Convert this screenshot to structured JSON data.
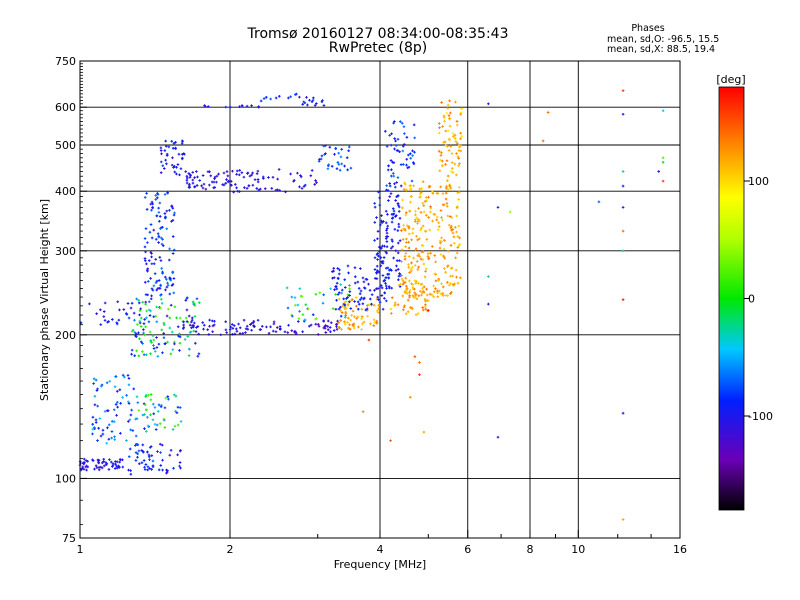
{
  "chart_data": {
    "type": "scatter",
    "title": "Tromsø 20160127 08:34:00-08:35:43",
    "subtitle": "RwPretec (8p)",
    "xlabel": "Frequency [MHz]",
    "ylabel": "Stationary phase Virtual Height [km]",
    "x_scale": "log",
    "y_scale": "log",
    "xlim": [
      1,
      16
    ],
    "ylim": [
      75,
      750
    ],
    "x_ticks": [
      1,
      2,
      4,
      6,
      8,
      10,
      16
    ],
    "x_tick_labels": [
      "1",
      "2",
      "4",
      "6",
      "8",
      "10",
      "16"
    ],
    "y_ticks": [
      75,
      100,
      200,
      300,
      400,
      500,
      600,
      750
    ],
    "y_tick_labels": [
      "75",
      "100",
      "200",
      "300",
      "400",
      "500",
      "600",
      "750"
    ],
    "x_minor": [
      3,
      5,
      7,
      9,
      12,
      14
    ],
    "grid": true,
    "info": {
      "heading": "Phases",
      "o_line": "mean, sd,O: -96.5, 15.5",
      "x_line": "mean, sd,X: 88.5, 19.4"
    },
    "colorbar": {
      "label": "[deg]",
      "range": [
        -180,
        180
      ],
      "ticks": [
        100,
        0,
        -100
      ],
      "tick_labels": [
        "100",
        "0",
        "-100"
      ]
    },
    "point_groups": [
      {
        "x": [
          1.0,
          1.22
        ],
        "y": [
          104,
          110
        ],
        "phase": [
          -115,
          -90
        ],
        "n": 60
      },
      {
        "x": [
          1.05,
          1.3
        ],
        "y": [
          118,
          165
        ],
        "phase": [
          -110,
          -40
        ],
        "n": 70
      },
      {
        "x": [
          1.25,
          1.6
        ],
        "y": [
          102,
          118
        ],
        "phase": [
          -115,
          -70
        ],
        "n": 60
      },
      {
        "x": [
          1.3,
          1.6
        ],
        "y": [
          125,
          150
        ],
        "phase": [
          -100,
          40
        ],
        "n": 50
      },
      {
        "x": [
          1.0,
          1.45
        ],
        "y": [
          210,
          235
        ],
        "phase": [
          -115,
          -80
        ],
        "n": 30
      },
      {
        "x": [
          1.25,
          1.75
        ],
        "y": [
          180,
          240
        ],
        "phase": [
          -120,
          30
        ],
        "n": 120
      },
      {
        "x": [
          1.35,
          1.55
        ],
        "y": [
          240,
          400
        ],
        "phase": [
          -115,
          -60
        ],
        "n": 120
      },
      {
        "x": [
          1.45,
          1.62
        ],
        "y": [
          430,
          510
        ],
        "phase": [
          -115,
          -80
        ],
        "n": 40
      },
      {
        "x": [
          1.62,
          2.0
        ],
        "y": [
          403,
          440
        ],
        "phase": [
          -120,
          -90
        ],
        "n": 50
      },
      {
        "x": [
          2.0,
          3.0
        ],
        "y": [
          398,
          445
        ],
        "phase": [
          -120,
          -90
        ],
        "n": 60
      },
      {
        "x": [
          3.0,
          3.5
        ],
        "y": [
          440,
          500
        ],
        "phase": [
          -100,
          -60
        ],
        "n": 30
      },
      {
        "x": [
          1.75,
          2.3
        ],
        "y": [
          600,
          605
        ],
        "phase": [
          -110,
          -90
        ],
        "n": 12
      },
      {
        "x": [
          2.3,
          3.1
        ],
        "y": [
          605,
          640
        ],
        "phase": [
          -110,
          -70
        ],
        "n": 25
      },
      {
        "x": [
          1.6,
          2.3
        ],
        "y": [
          200,
          215
        ],
        "phase": [
          -120,
          -90
        ],
        "n": 60
      },
      {
        "x": [
          2.3,
          3.3
        ],
        "y": [
          200,
          215
        ],
        "phase": [
          -130,
          -90
        ],
        "n": 50
      },
      {
        "x": [
          2.6,
          3.5
        ],
        "y": [
          215,
          255
        ],
        "phase": [
          -100,
          40
        ],
        "n": 40
      },
      {
        "x": [
          3.3,
          4.0
        ],
        "y": [
          205,
          240
        ],
        "phase": [
          100,
          140
        ],
        "n": 70
      },
      {
        "x": [
          3.2,
          4.2
        ],
        "y": [
          225,
          280
        ],
        "phase": [
          -110,
          -80
        ],
        "n": 90
      },
      {
        "x": [
          3.9,
          4.4
        ],
        "y": [
          250,
          400
        ],
        "phase": [
          -110,
          -80
        ],
        "n": 110
      },
      {
        "x": [
          4.1,
          4.7
        ],
        "y": [
          400,
          560
        ],
        "phase": [
          -110,
          -60
        ],
        "n": 60
      },
      {
        "x": [
          4.4,
          5.8
        ],
        "y": [
          240,
          420
        ],
        "phase": [
          100,
          140
        ],
        "n": 260
      },
      {
        "x": [
          5.2,
          5.85
        ],
        "y": [
          420,
          620
        ],
        "phase": [
          90,
          140
        ],
        "n": 70
      },
      {
        "x": [
          4.2,
          5.0
        ],
        "y": [
          220,
          260
        ],
        "phase": [
          100,
          140
        ],
        "n": 60
      }
    ],
    "sparse_points": [
      {
        "x": 6.6,
        "y": 610,
        "phase": -110
      },
      {
        "x": 6.9,
        "y": 370,
        "phase": -90
      },
      {
        "x": 7.3,
        "y": 362,
        "phase": 40
      },
      {
        "x": 6.6,
        "y": 265,
        "phase": -30
      },
      {
        "x": 6.6,
        "y": 232,
        "phase": -110
      },
      {
        "x": 6.9,
        "y": 122,
        "phase": -120
      },
      {
        "x": 8.7,
        "y": 585,
        "phase": 140
      },
      {
        "x": 8.5,
        "y": 510,
        "phase": 140
      },
      {
        "x": 11.0,
        "y": 380,
        "phase": -70
      },
      {
        "x": 12.3,
        "y": 650,
        "phase": 160
      },
      {
        "x": 12.3,
        "y": 580,
        "phase": -100
      },
      {
        "x": 12.3,
        "y": 440,
        "phase": -20
      },
      {
        "x": 12.3,
        "y": 410,
        "phase": -90
      },
      {
        "x": 12.3,
        "y": 370,
        "phase": -90
      },
      {
        "x": 12.3,
        "y": 330,
        "phase": 140
      },
      {
        "x": 12.3,
        "y": 300,
        "phase": -20
      },
      {
        "x": 12.3,
        "y": 237,
        "phase": 170
      },
      {
        "x": 12.3,
        "y": 137,
        "phase": -110
      },
      {
        "x": 12.3,
        "y": 82,
        "phase": 120
      },
      {
        "x": 14.8,
        "y": 590,
        "phase": -40
      },
      {
        "x": 14.8,
        "y": 470,
        "phase": 20
      },
      {
        "x": 14.8,
        "y": 460,
        "phase": 0
      },
      {
        "x": 14.5,
        "y": 440,
        "phase": -110
      },
      {
        "x": 14.8,
        "y": 420,
        "phase": 160
      },
      {
        "x": 4.8,
        "y": 175,
        "phase": 140
      },
      {
        "x": 4.8,
        "y": 165,
        "phase": 160
      },
      {
        "x": 4.7,
        "y": 180,
        "phase": 150
      },
      {
        "x": 4.6,
        "y": 148,
        "phase": 130
      },
      {
        "x": 4.9,
        "y": 125,
        "phase": 120
      },
      {
        "x": 4.2,
        "y": 120,
        "phase": 150
      },
      {
        "x": 3.7,
        "y": 138,
        "phase": 130
      },
      {
        "x": 3.8,
        "y": 195,
        "phase": 160
      },
      {
        "x": 5.0,
        "y": 225,
        "phase": 170
      }
    ]
  }
}
